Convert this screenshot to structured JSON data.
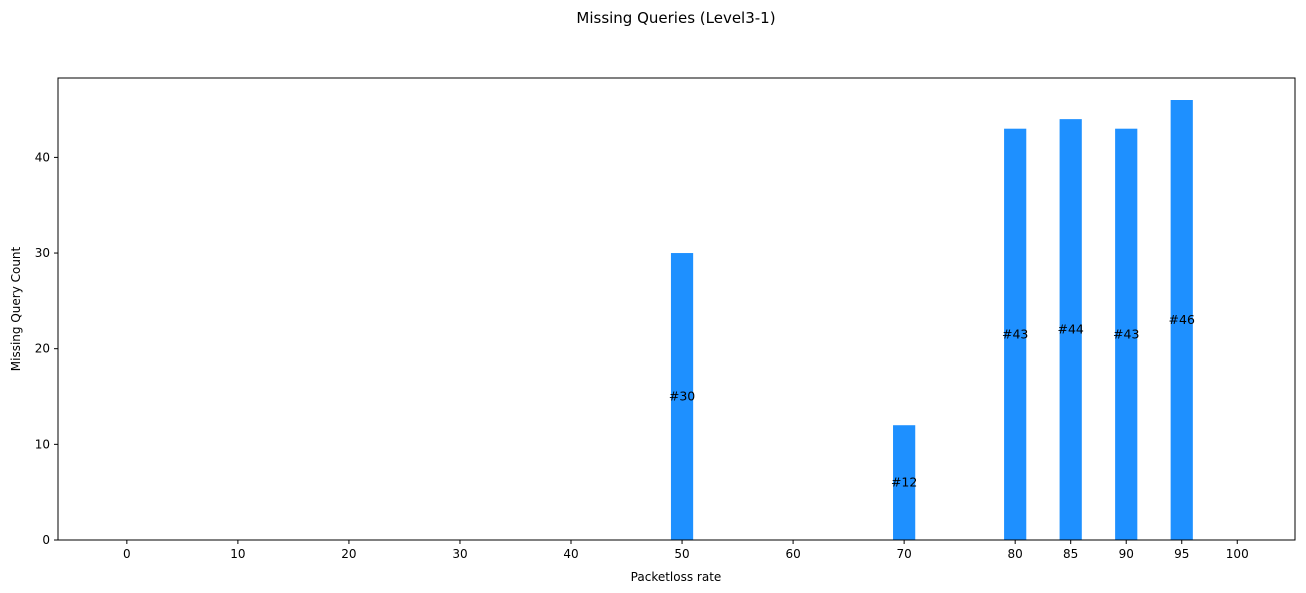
{
  "chart_data": {
    "type": "bar",
    "title": "Missing Queries (Level3-1)",
    "xlabel": "Packetloss rate",
    "ylabel": "Missing Query Count",
    "categories": [
      "0",
      "10",
      "20",
      "30",
      "40",
      "50",
      "60",
      "70",
      "80",
      "85",
      "90",
      "95",
      "100"
    ],
    "x": [
      0,
      10,
      20,
      30,
      40,
      50,
      60,
      70,
      80,
      85,
      90,
      95,
      100
    ],
    "values": [
      0,
      0,
      0,
      0,
      0,
      30,
      0,
      12,
      43,
      44,
      43,
      46,
      0
    ],
    "data_labels": [
      "",
      "",
      "",
      "",
      "",
      "#30",
      "",
      "#12",
      "#43",
      "#44",
      "#43",
      "#46",
      ""
    ],
    "xlim": [
      -6.2,
      105.2
    ],
    "ylim": [
      0,
      48.3
    ],
    "yticks": [
      0,
      10,
      20,
      30,
      40
    ],
    "bar_width": 2,
    "bar_color": "#1e90ff",
    "grid": false
  }
}
